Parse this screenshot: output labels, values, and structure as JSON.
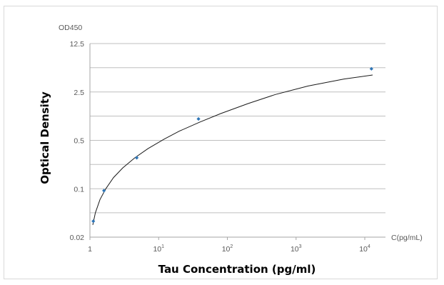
{
  "chart_data": {
    "type": "scatter",
    "xscale": "log",
    "yscale": "log",
    "xlim": [
      1,
      20000
    ],
    "ylim": [
      0.02,
      12.5
    ],
    "xlabel": "Tau Concentration (pg/ml)",
    "ylabel": "Optical Density",
    "x_unit_label": "C(pg/mL)",
    "y_unit_label": "OD450",
    "x_ticks": [
      {
        "value": 1,
        "base": "1",
        "exp": ""
      },
      {
        "value": 10,
        "base": "10",
        "exp": "1"
      },
      {
        "value": 100,
        "base": "10",
        "exp": "2"
      },
      {
        "value": 1000,
        "base": "10",
        "exp": "3"
      },
      {
        "value": 10000,
        "base": "10",
        "exp": "4"
      }
    ],
    "y_ticks": [
      {
        "value": 12.5,
        "label": "12.5"
      },
      {
        "value": 2.5,
        "label": "2.5"
      },
      {
        "value": 0.5,
        "label": "0.5"
      },
      {
        "value": 0.1,
        "label": "0.1"
      },
      {
        "value": 0.02,
        "label": "0.02"
      }
    ],
    "y_gridlines": [
      12.5,
      5.6,
      2.5,
      1.12,
      0.5,
      0.224,
      0.1,
      0.045,
      0.02
    ],
    "grid": true,
    "series": [
      {
        "points": [
          {
            "x": 1.12,
            "y": 0.034
          },
          {
            "x": 1.6,
            "y": 0.094
          },
          {
            "x": 4.8,
            "y": 0.28
          },
          {
            "x": 38,
            "y": 1.02
          },
          {
            "x": 12500,
            "y": 5.4
          }
        ]
      }
    ],
    "fit_curve": [
      {
        "x": 1.1,
        "y": 0.03
      },
      {
        "x": 1.2,
        "y": 0.045
      },
      {
        "x": 1.4,
        "y": 0.07
      },
      {
        "x": 1.7,
        "y": 0.1
      },
      {
        "x": 2.2,
        "y": 0.145
      },
      {
        "x": 3,
        "y": 0.2
      },
      {
        "x": 4.5,
        "y": 0.28
      },
      {
        "x": 7,
        "y": 0.38
      },
      {
        "x": 12,
        "y": 0.52
      },
      {
        "x": 20,
        "y": 0.68
      },
      {
        "x": 40,
        "y": 0.92
      },
      {
        "x": 80,
        "y": 1.22
      },
      {
        "x": 200,
        "y": 1.7
      },
      {
        "x": 500,
        "y": 2.3
      },
      {
        "x": 1500,
        "y": 3.05
      },
      {
        "x": 5000,
        "y": 3.85
      },
      {
        "x": 13000,
        "y": 4.4
      }
    ],
    "colors": {
      "point": "#2e75b6",
      "curve": "#1a1a1a",
      "grid": "#bfbfbf",
      "axis": "#a6a6a6",
      "frame": "#d9d9d9"
    }
  }
}
